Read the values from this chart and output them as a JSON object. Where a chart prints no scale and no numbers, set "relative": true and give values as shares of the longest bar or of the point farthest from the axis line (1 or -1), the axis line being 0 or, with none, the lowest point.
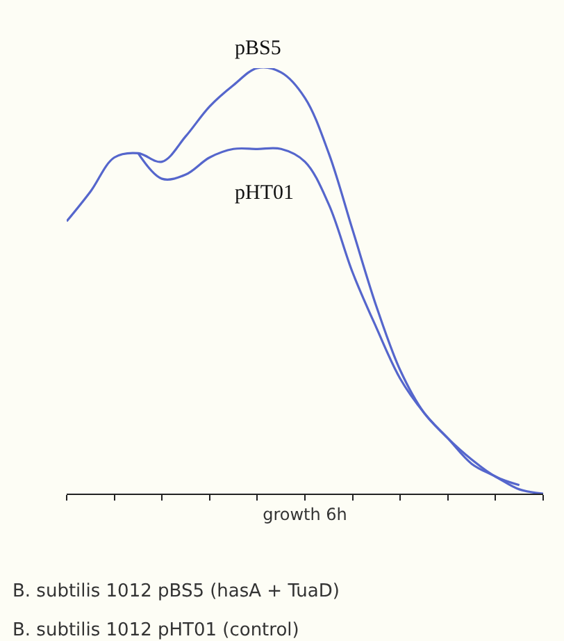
{
  "chart_data": {
    "type": "line",
    "relative": true,
    "xlabel": "growth 6h",
    "tick_labels": false,
    "grid": false,
    "legend": false,
    "marker": "none",
    "line_style": "solid",
    "categories": [
      null,
      null,
      null,
      null,
      null,
      null,
      null,
      null,
      null,
      null,
      null,
      null,
      null,
      null,
      null,
      null,
      null,
      null,
      null,
      null,
      null
    ],
    "series": [
      {
        "name": "pBS5",
        "color": "#5566cc",
        "values": [
          0.64,
          0.71,
          0.79,
          0.8,
          0.78,
          0.84,
          0.91,
          0.96,
          1.0,
          0.99,
          0.93,
          0.8,
          0.62,
          0.44,
          0.29,
          0.19,
          0.13,
          0.07,
          0.04,
          0.01,
          0
        ]
      },
      {
        "name": "pHT01",
        "color": "#5566cc",
        "values": [
          null,
          null,
          null,
          0.8,
          0.74,
          0.75,
          0.79,
          0.81,
          0.81,
          0.81,
          0.78,
          0.68,
          0.52,
          0.39,
          0.27,
          0.19,
          0.13,
          0.08,
          0.04,
          0.02,
          null
        ]
      }
    ],
    "annotations": [
      "B. subtilis 1012 pBS5 (hasA + TuaD)",
      "B. subtilis 1012 pHT01 (control)"
    ]
  }
}
